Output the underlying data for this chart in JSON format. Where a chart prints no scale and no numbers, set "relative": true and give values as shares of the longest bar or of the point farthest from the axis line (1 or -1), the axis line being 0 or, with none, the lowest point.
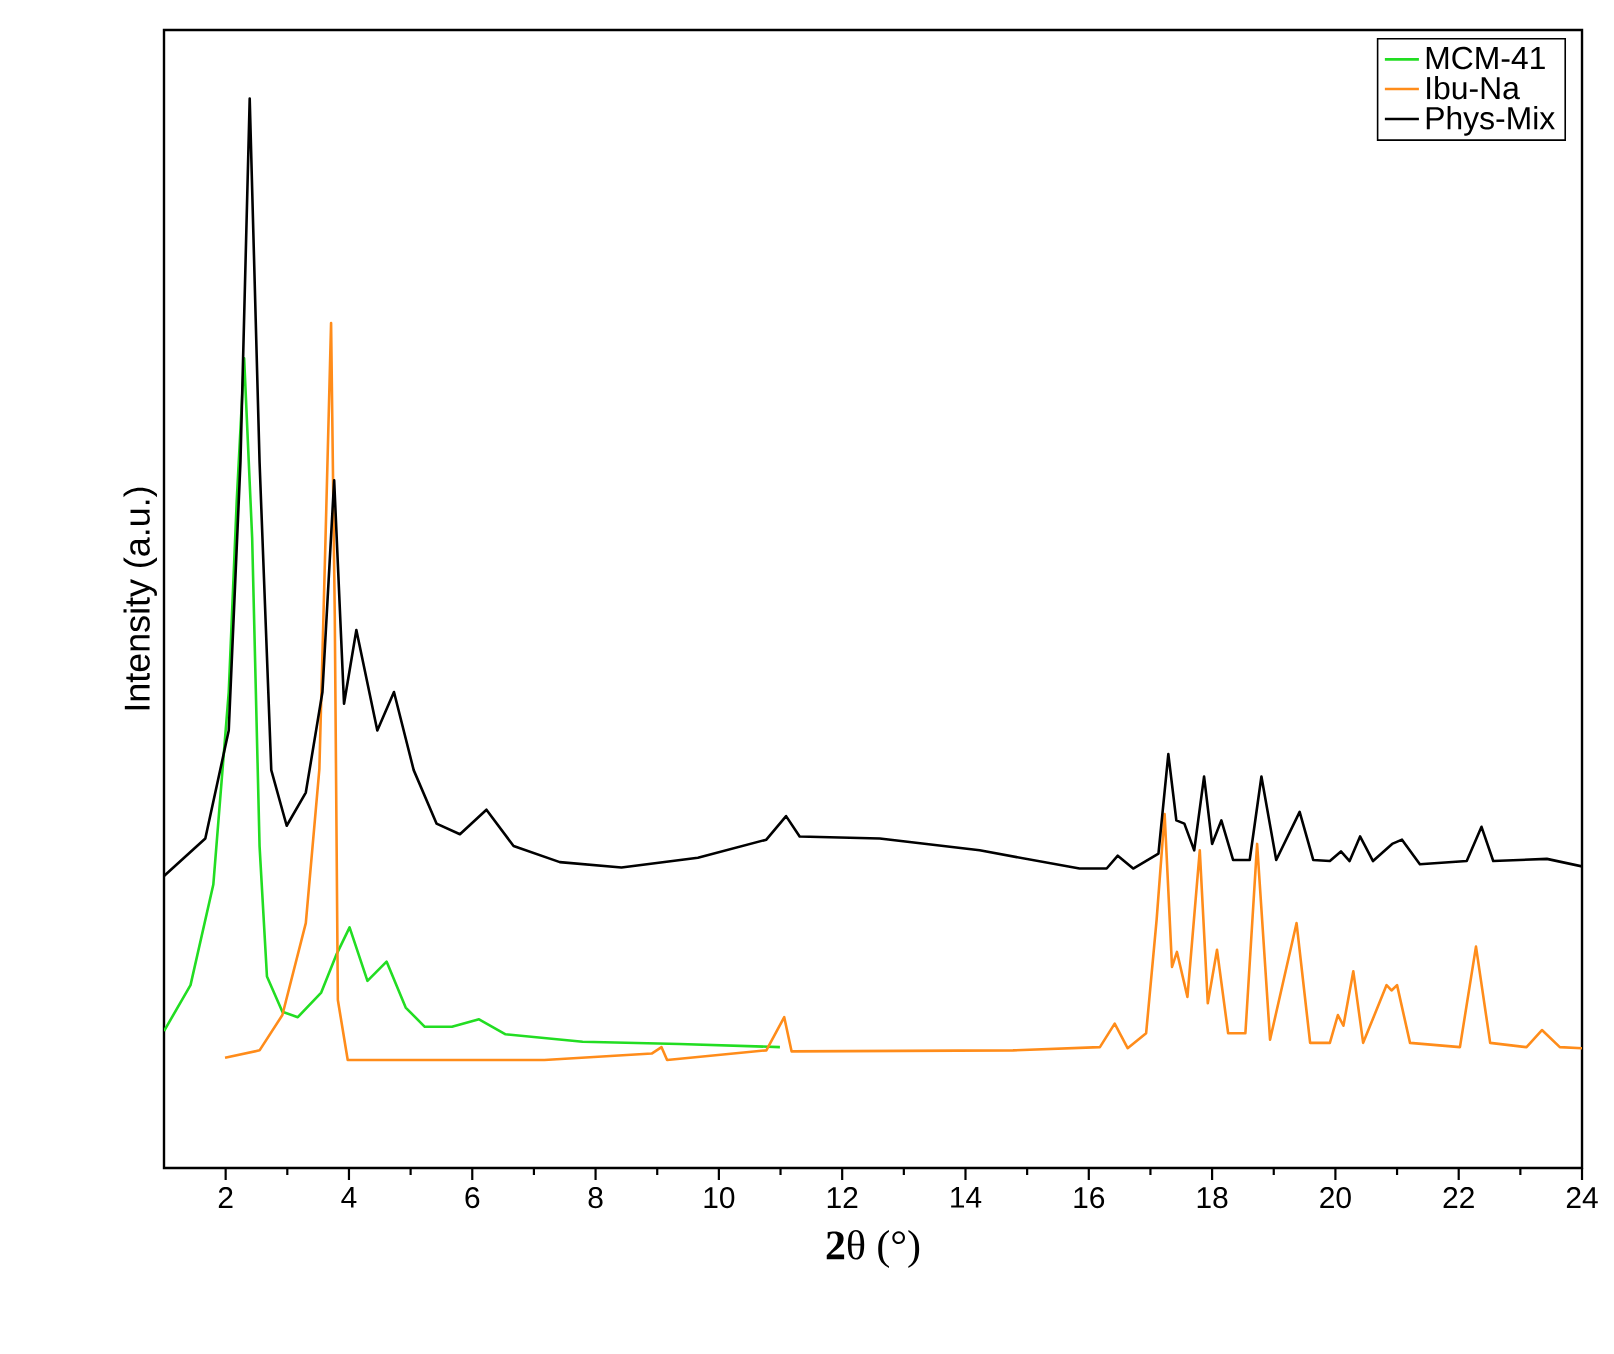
{
  "chart_data": {
    "type": "line",
    "xlabel": "**2**θ (°)",
    "ylabel": "Intensity (a.u.)",
    "relative": true,
    "xlim": [
      1,
      24
    ],
    "xticks": [
      2,
      4,
      6,
      8,
      10,
      12,
      14,
      16,
      18,
      20,
      22,
      24
    ],
    "legend": "top right",
    "series": [
      {
        "name": "MCM-41",
        "color": "#22dd22",
        "x": [
          1.0,
          1.43,
          1.8,
          2.05,
          2.18,
          2.3,
          2.43,
          2.55,
          2.67,
          2.92,
          3.17,
          3.55,
          3.8,
          4.01,
          4.3,
          4.61,
          4.92,
          5.23,
          5.67,
          6.11,
          6.54,
          7.79,
          9.36,
          10.99
        ],
        "values": [
          0.128,
          0.171,
          0.265,
          0.445,
          0.624,
          0.757,
          0.589,
          0.301,
          0.179,
          0.146,
          0.141,
          0.164,
          0.2,
          0.225,
          0.175,
          0.193,
          0.15,
          0.132,
          0.132,
          0.139,
          0.125,
          0.118,
          0.116,
          0.113
        ]
      },
      {
        "name": "Ibu-Na",
        "color": "#ff8c1a",
        "x": [
          1.99,
          2.55,
          2.92,
          3.3,
          3.52,
          3.62,
          3.71,
          3.77,
          3.82,
          3.98,
          7.17,
          8.91,
          9.07,
          9.16,
          10.77,
          11.06,
          11.18,
          14.77,
          16.18,
          16.42,
          16.63,
          16.93,
          17.1,
          17.23,
          17.35,
          17.43,
          17.6,
          17.8,
          17.93,
          18.08,
          18.26,
          18.54,
          18.73,
          18.94,
          19.37,
          19.59,
          19.91,
          20.04,
          20.13,
          20.29,
          20.45,
          20.83,
          20.91,
          21.0,
          21.21,
          22.02,
          22.28,
          22.51,
          23.1,
          23.35,
          23.64,
          24.0
        ],
        "values": [
          0.103,
          0.11,
          0.143,
          0.229,
          0.373,
          0.589,
          0.79,
          0.516,
          0.157,
          0.101,
          0.101,
          0.107,
          0.113,
          0.101,
          0.11,
          0.141,
          0.109,
          0.11,
          0.113,
          0.135,
          0.112,
          0.126,
          0.232,
          0.331,
          0.188,
          0.202,
          0.16,
          0.297,
          0.154,
          0.204,
          0.126,
          0.126,
          0.303,
          0.12,
          0.229,
          0.117,
          0.117,
          0.143,
          0.133,
          0.184,
          0.117,
          0.171,
          0.166,
          0.171,
          0.117,
          0.113,
          0.207,
          0.117,
          0.113,
          0.129,
          0.113,
          0.112
        ]
      },
      {
        "name": "Phys-Mix",
        "color": "#000000",
        "x": [
          1.0,
          1.67,
          2.05,
          2.24,
          2.39,
          2.55,
          2.74,
          2.99,
          3.3,
          3.57,
          3.76,
          3.92,
          4.12,
          4.46,
          4.73,
          5.05,
          5.42,
          5.8,
          6.23,
          6.67,
          7.42,
          8.42,
          9.66,
          10.77,
          11.09,
          11.31,
          12.61,
          14.23,
          15.85,
          16.29,
          16.47,
          16.72,
          17.13,
          17.29,
          17.42,
          17.55,
          17.71,
          17.87,
          18.0,
          18.15,
          18.34,
          18.61,
          18.8,
          19.04,
          19.42,
          19.64,
          19.91,
          20.09,
          20.23,
          20.4,
          20.61,
          20.92,
          21.08,
          21.37,
          22.13,
          22.37,
          22.56,
          23.43,
          24.0
        ],
        "values": [
          0.273,
          0.308,
          0.409,
          0.66,
          1.0,
          0.66,
          0.372,
          0.32,
          0.351,
          0.445,
          0.643,
          0.434,
          0.503,
          0.409,
          0.445,
          0.372,
          0.322,
          0.312,
          0.335,
          0.301,
          0.286,
          0.281,
          0.29,
          0.307,
          0.329,
          0.31,
          0.308,
          0.297,
          0.28,
          0.28,
          0.292,
          0.28,
          0.294,
          0.387,
          0.325,
          0.322,
          0.297,
          0.366,
          0.303,
          0.325,
          0.288,
          0.288,
          0.366,
          0.288,
          0.333,
          0.288,
          0.287,
          0.296,
          0.287,
          0.31,
          0.287,
          0.303,
          0.307,
          0.284,
          0.287,
          0.319,
          0.287,
          0.289,
          0.282
        ]
      }
    ]
  }
}
